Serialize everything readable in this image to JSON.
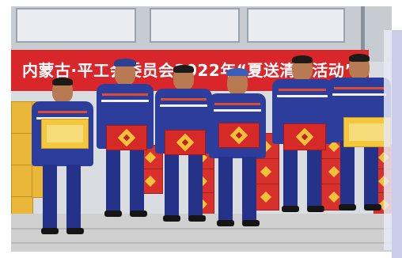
{
  "photo": {
    "banner_text": "内蒙古·平工会委员会2022年“夏送清凉活动”"
  },
  "colors": {
    "banner": "#d9262b",
    "uniform": "#2d3d9c",
    "gift_red": "#d62a29",
    "gift_yellow": "#f3c83f"
  }
}
